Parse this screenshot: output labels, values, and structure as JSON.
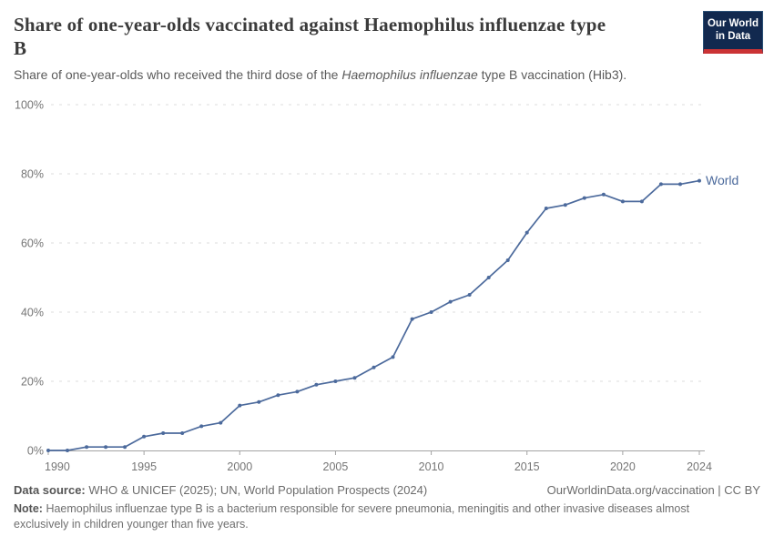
{
  "header": {
    "title": "Share of one-year-olds vaccinated against Haemophilus influenzae type\nB",
    "subtitle_prefix": "Share of one-year-olds who received the third dose of the ",
    "subtitle_italic": "Haemophilus influenzae",
    "subtitle_suffix": " type B vaccination (Hib3)."
  },
  "logo": {
    "line1": "Our World",
    "line2": "in Data",
    "background_color": "#12294f",
    "accent_color": "#cb3335"
  },
  "chart_data": {
    "type": "line",
    "title": "Share of one-year-olds vaccinated against Haemophilus influenzae type B",
    "xlabel": "",
    "ylabel": "",
    "xlim": [
      1990,
      2024
    ],
    "ylim": [
      0,
      100
    ],
    "grid": "horizontal-dashed",
    "x_ticks": [
      1990,
      1995,
      2000,
      2005,
      2010,
      2015,
      2020,
      2024
    ],
    "y_ticks": [
      {
        "value": 0,
        "label": "0%"
      },
      {
        "value": 20,
        "label": "20%"
      },
      {
        "value": 40,
        "label": "40%"
      },
      {
        "value": 60,
        "label": "60%"
      },
      {
        "value": 80,
        "label": "80%"
      },
      {
        "value": 100,
        "label": "100%"
      }
    ],
    "series": [
      {
        "name": "World",
        "color": "#4c6a9c",
        "x": [
          1990,
          1991,
          1992,
          1993,
          1994,
          1995,
          1996,
          1997,
          1998,
          1999,
          2000,
          2001,
          2002,
          2003,
          2004,
          2005,
          2006,
          2007,
          2008,
          2009,
          2010,
          2011,
          2012,
          2013,
          2014,
          2015,
          2016,
          2017,
          2018,
          2019,
          2020,
          2021,
          2022,
          2023,
          2024
        ],
        "values": [
          0,
          0,
          1,
          1,
          1,
          4,
          5,
          5,
          7,
          8,
          13,
          14,
          16,
          17,
          19,
          20,
          21,
          24,
          27,
          38,
          40,
          43,
          45,
          50,
          55,
          63,
          70,
          71,
          73,
          74,
          72,
          72,
          77,
          77,
          78
        ]
      }
    ],
    "legend_position": "end-of-line-label",
    "axis_color": "#a3a3a3",
    "gridline_color": "#dcdcdc",
    "tick_label_color": "#757575"
  },
  "footer": {
    "data_source_label": "Data source:",
    "data_source_text": "WHO & UNICEF (2025); UN, World Population Prospects (2024)",
    "rights_text": "OurWorldinData.org/vaccination | CC BY",
    "note_label": "Note:",
    "note_text": "Haemophilus influenzae type B is a bacterium responsible for severe pneumonia, meningitis and other invasive diseases almost\nexclusively in children younger than five years."
  }
}
